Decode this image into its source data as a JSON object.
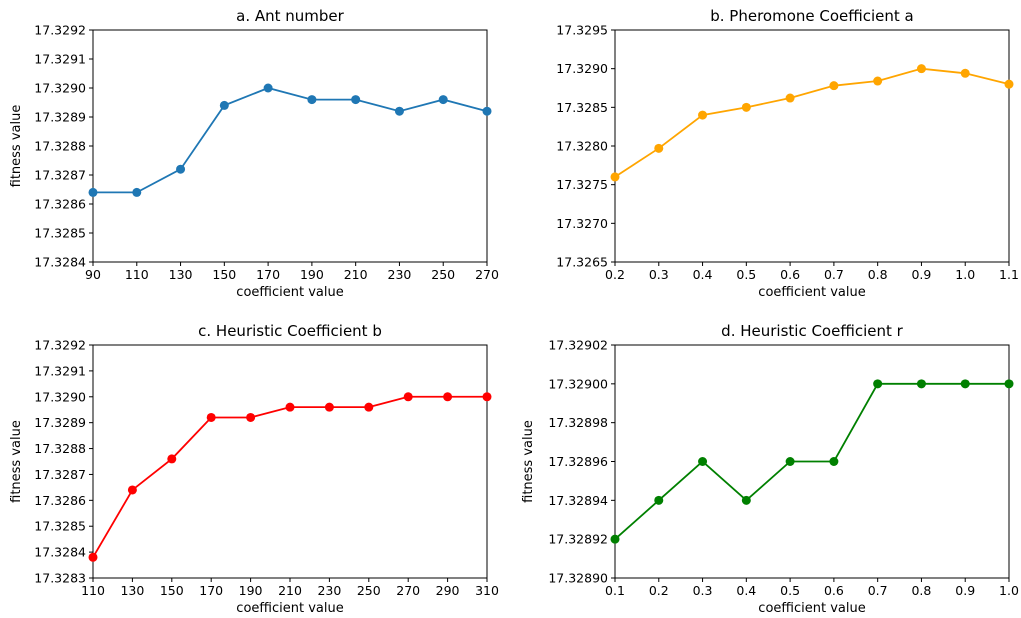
{
  "chart_data": [
    {
      "type": "line",
      "title": "a. Ant number",
      "xlabel": "coefficient value",
      "ylabel": "fitness value",
      "x": [
        90,
        110,
        130,
        150,
        170,
        190,
        210,
        230,
        250,
        270
      ],
      "xticks": [
        "90",
        "110",
        "130",
        "150",
        "170",
        "190",
        "210",
        "230",
        "250",
        "270"
      ],
      "xlim": [
        90,
        270
      ],
      "ylim": [
        17.3284,
        17.3292
      ],
      "yticks": [
        "17.3284",
        "17.3285",
        "17.3286",
        "17.3287",
        "17.3288",
        "17.3289",
        "17.3290",
        "17.3291",
        "17.3292"
      ],
      "series": [
        {
          "color": "#1f77b4",
          "values": [
            17.32864,
            17.32864,
            17.32872,
            17.32894,
            17.329,
            17.32896,
            17.32896,
            17.32892,
            17.32896,
            17.32892
          ]
        }
      ],
      "grid": false
    },
    {
      "type": "line",
      "title": "b. Pheromone Coefficient a",
      "xlabel": "coefficient value",
      "ylabel": "",
      "x": [
        0.2,
        0.3,
        0.4,
        0.5,
        0.6,
        0.7,
        0.8,
        0.9,
        1.0,
        1.1
      ],
      "xticks": [
        "0.2",
        "0.3",
        "0.4",
        "0.5",
        "0.6",
        "0.7",
        "0.8",
        "0.9",
        "1.0",
        "1.1"
      ],
      "xlim": [
        0.2,
        1.1
      ],
      "ylim": [
        17.3265,
        17.3295
      ],
      "yticks": [
        "17.3265",
        "17.3270",
        "17.3275",
        "17.3280",
        "17.3285",
        "17.3290",
        "17.3295"
      ],
      "series": [
        {
          "color": "#ffa500",
          "values": [
            17.3276,
            17.32797,
            17.3284,
            17.3285,
            17.32862,
            17.32878,
            17.32884,
            17.329,
            17.32894,
            17.3288
          ]
        }
      ],
      "grid": false
    },
    {
      "type": "line",
      "title": "c. Heuristic Coefficient b",
      "xlabel": "coefficient value",
      "ylabel": "fitness value",
      "x": [
        110,
        130,
        150,
        170,
        190,
        210,
        230,
        250,
        270,
        290,
        310
      ],
      "xticks": [
        "110",
        "130",
        "150",
        "170",
        "190",
        "210",
        "230",
        "250",
        "270",
        "290",
        "310"
      ],
      "xlim": [
        110,
        310
      ],
      "ylim": [
        17.3283,
        17.3292
      ],
      "yticks": [
        "17.3283",
        "17.3284",
        "17.3285",
        "17.3286",
        "17.3287",
        "17.3288",
        "17.3289",
        "17.3290",
        "17.3291",
        "17.3292"
      ],
      "series": [
        {
          "color": "#ff0000",
          "values": [
            17.32838,
            17.32864,
            17.32876,
            17.32892,
            17.32892,
            17.32896,
            17.32896,
            17.32896,
            17.329,
            17.329,
            17.329
          ]
        }
      ],
      "grid": false
    },
    {
      "type": "line",
      "title": "d. Heuristic Coefficient r",
      "xlabel": "coefficient value",
      "ylabel": "fitness value",
      "x": [
        0.1,
        0.2,
        0.3,
        0.4,
        0.5,
        0.6,
        0.7,
        0.8,
        0.9,
        1.0
      ],
      "xticks": [
        "0.1",
        "0.2",
        "0.3",
        "0.4",
        "0.5",
        "0.6",
        "0.7",
        "0.8",
        "0.9",
        "1.0"
      ],
      "xlim": [
        0.1,
        1.0
      ],
      "ylim": [
        17.3289,
        17.32902
      ],
      "yticks": [
        "17.32890",
        "17.32892",
        "17.32894",
        "17.32896",
        "17.32898",
        "17.32900",
        "17.32902"
      ],
      "series": [
        {
          "color": "#008000",
          "values": [
            17.32892,
            17.32894,
            17.32896,
            17.32894,
            17.32896,
            17.32896,
            17.329,
            17.329,
            17.329,
            17.329
          ]
        }
      ],
      "grid": false
    }
  ]
}
